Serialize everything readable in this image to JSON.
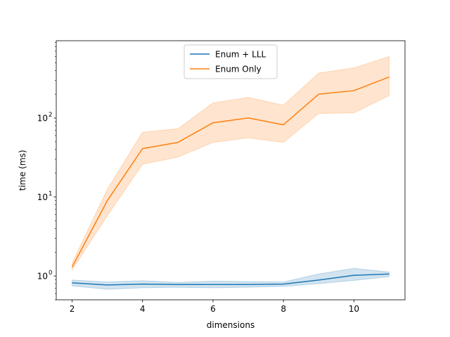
{
  "chart_data": {
    "type": "line",
    "title": "",
    "xlabel": "dimensions",
    "ylabel": "time (ms)",
    "yscale": "log",
    "x": [
      2,
      3,
      4,
      5,
      6,
      7,
      8,
      9,
      10,
      11
    ],
    "xlim": [
      1.55,
      11.45
    ],
    "ylim": [
      0.5,
      950
    ],
    "xticks": [
      2,
      4,
      6,
      8,
      10
    ],
    "xtick_labels": [
      "2",
      "4",
      "6",
      "8",
      "10"
    ],
    "yticks": [
      1,
      10,
      100
    ],
    "ytick_labels": [
      "10",
      "10",
      "10"
    ],
    "ytick_exponents": [
      "0",
      "1",
      "2"
    ],
    "grid": false,
    "legend_position": "top-center",
    "series": [
      {
        "name": "Enum + LLL",
        "color": "#1f77b4",
        "values": [
          0.82,
          0.77,
          0.79,
          0.78,
          0.78,
          0.78,
          0.79,
          0.89,
          1.02,
          1.06
        ],
        "band_low": [
          0.75,
          0.68,
          0.71,
          0.72,
          0.71,
          0.72,
          0.74,
          0.8,
          0.88,
          0.98
        ],
        "band_high": [
          0.89,
          0.84,
          0.87,
          0.83,
          0.86,
          0.85,
          0.84,
          1.06,
          1.25,
          1.12
        ]
      },
      {
        "name": "Enum Only",
        "color": "#ff7f0e",
        "values": [
          1.3,
          9.0,
          41,
          49,
          87,
          100,
          82,
          200,
          222,
          330
        ],
        "band_low": [
          1.2,
          5.8,
          26,
          32,
          49,
          56,
          49,
          114,
          116,
          192
        ],
        "band_high": [
          1.45,
          12.5,
          66,
          73,
          155,
          182,
          145,
          370,
          430,
          600
        ]
      }
    ]
  }
}
